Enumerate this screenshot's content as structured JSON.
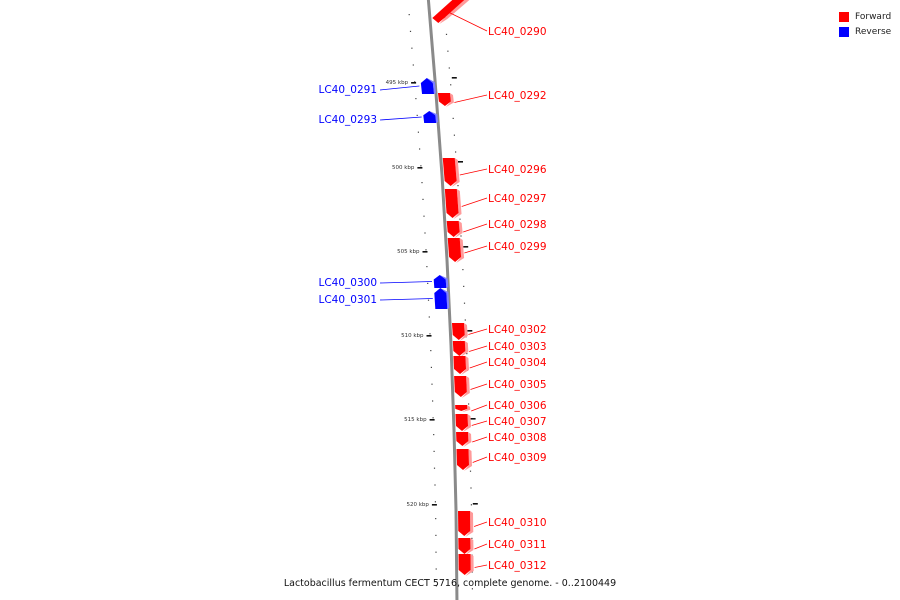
{
  "caption": "Lactobacillus fermentum CECT 5716, complete genome. - 0..2100449",
  "legend": {
    "forward": {
      "label": "Forward",
      "color": "#ff0000"
    },
    "reverse": {
      "label": "Reverse",
      "color": "#0000ff"
    }
  },
  "colors": {
    "forward": "#ff0000",
    "forward_side": "#ff9a9a",
    "reverse": "#0000ff",
    "reverse_side": "#8080ff",
    "backbone": "#8a8a8a"
  },
  "kbp_labels": [
    "495 kbp",
    "500 kbp",
    "505 kbp",
    "510 kbp",
    "515 kbp",
    "520 kbp"
  ],
  "genes": [
    {
      "id": "LC40_0290",
      "strand": "forward"
    },
    {
      "id": "LC40_0291",
      "strand": "reverse"
    },
    {
      "id": "LC40_0292",
      "strand": "forward"
    },
    {
      "id": "LC40_0293",
      "strand": "reverse"
    },
    {
      "id": "LC40_0296",
      "strand": "forward"
    },
    {
      "id": "LC40_0297",
      "strand": "forward"
    },
    {
      "id": "LC40_0298",
      "strand": "forward"
    },
    {
      "id": "LC40_0299",
      "strand": "forward"
    },
    {
      "id": "LC40_0300",
      "strand": "reverse"
    },
    {
      "id": "LC40_0301",
      "strand": "reverse"
    },
    {
      "id": "LC40_0302",
      "strand": "forward"
    },
    {
      "id": "LC40_0303",
      "strand": "forward"
    },
    {
      "id": "LC40_0304",
      "strand": "forward"
    },
    {
      "id": "LC40_0305",
      "strand": "forward"
    },
    {
      "id": "LC40_0306",
      "strand": "forward"
    },
    {
      "id": "LC40_0307",
      "strand": "forward"
    },
    {
      "id": "LC40_0308",
      "strand": "forward"
    },
    {
      "id": "LC40_0309",
      "strand": "forward"
    },
    {
      "id": "LC40_0310",
      "strand": "forward"
    },
    {
      "id": "LC40_0311",
      "strand": "forward"
    },
    {
      "id": "LC40_0312",
      "strand": "forward"
    }
  ]
}
